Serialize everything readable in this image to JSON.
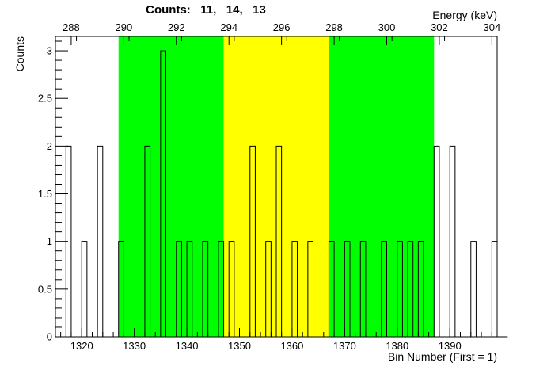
{
  "chart_data": {
    "type": "histogram",
    "title": "Counts:   11,   14,   13",
    "xlabel": "Bin Number (First = 1)",
    "ylabel": "Counts",
    "x2label": "Energy (keV)",
    "xlim": [
      1315,
      1399
    ],
    "ylim": [
      0,
      3.15
    ],
    "xticks": [
      1320,
      1330,
      1340,
      1350,
      1360,
      1370,
      1380,
      1390
    ],
    "yticks": [
      0,
      0.5,
      1,
      1.5,
      2,
      2.5,
      3
    ],
    "ytick_labels": [
      "0",
      "0.5",
      "1",
      "1.5",
      "2",
      "2.5",
      "3"
    ],
    "energy_ticks": [
      288,
      290,
      292,
      294,
      296,
      298,
      300,
      302,
      304
    ],
    "energy_tick_bins": [
      1318,
      1328,
      1338,
      1348,
      1358,
      1368,
      1378,
      1388,
      1398
    ],
    "bin_start": 1315,
    "bin_values": [
      0,
      0,
      2,
      0,
      0,
      1,
      0,
      0,
      2,
      0,
      0,
      0,
      1,
      0,
      0,
      0,
      0,
      2,
      0,
      0,
      3,
      0,
      0,
      1,
      0,
      1,
      0,
      0,
      1,
      0,
      0,
      1,
      0,
      1,
      0,
      0,
      0,
      2,
      0,
      0,
      1,
      0,
      2,
      0,
      0,
      1,
      0,
      0,
      1,
      0,
      0,
      0,
      1,
      0,
      0,
      1,
      0,
      0,
      1,
      0,
      0,
      0,
      1,
      0,
      0,
      1,
      0,
      1,
      0,
      1,
      0,
      0,
      2,
      0,
      0,
      2,
      0,
      0,
      0,
      1,
      0,
      0,
      0,
      1,
      0,
      0
    ],
    "regions": [
      {
        "from": 1327,
        "to": 1347,
        "color": "#00ff00"
      },
      {
        "from": 1347,
        "to": 1367,
        "color": "#ffff00"
      },
      {
        "from": 1367,
        "to": 1387,
        "color": "#00ff00"
      }
    ]
  }
}
